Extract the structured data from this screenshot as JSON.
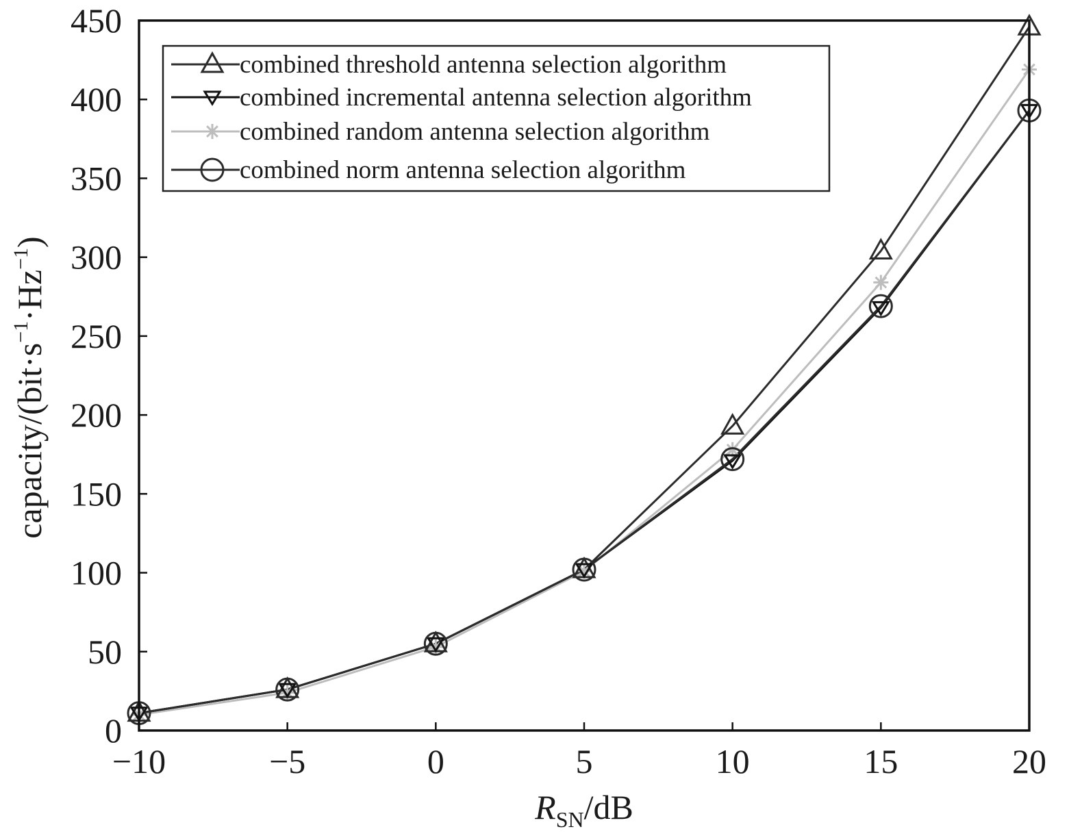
{
  "chart_data": {
    "type": "line",
    "title": "",
    "xlabel": {
      "main": "R",
      "subscript": "SN",
      "unit": "/dB"
    },
    "ylabel": {
      "parts": [
        "capacity/(bit·s",
        "−1",
        "·Hz",
        "−1",
        ")"
      ]
    },
    "x": [
      -10,
      -5,
      0,
      5,
      10,
      15,
      20
    ],
    "xlim": [
      -10,
      20
    ],
    "ylim": [
      0,
      450
    ],
    "xticks": [
      "−10",
      "−5",
      "0",
      "5",
      "10",
      "15",
      "20"
    ],
    "yticks": [
      "0",
      "50",
      "100",
      "150",
      "200",
      "250",
      "300",
      "350",
      "400",
      "450"
    ],
    "grid": false,
    "legend_position": "top-left",
    "series": [
      {
        "name": "combined threshold antenna selection algorithm",
        "marker": "triangle-up",
        "color": "#2b2b2b",
        "values": [
          11,
          26,
          55,
          102,
          193,
          304,
          446
        ]
      },
      {
        "name": "combined incremental antenna selection algorithm",
        "marker": "triangle-down",
        "color": "#111111",
        "values": [
          11,
          26,
          55,
          102,
          171,
          268,
          393
        ]
      },
      {
        "name": "combined random antenna selection algorithm",
        "marker": "asterisk",
        "color": "#bdbdbd",
        "values": [
          10,
          24,
          53,
          101,
          178,
          284,
          419
        ]
      },
      {
        "name": "combined norm antenna selection algorithm",
        "marker": "circle",
        "color": "#2b2b2b",
        "values": [
          11,
          26,
          55,
          102,
          172,
          269,
          393
        ]
      }
    ]
  }
}
